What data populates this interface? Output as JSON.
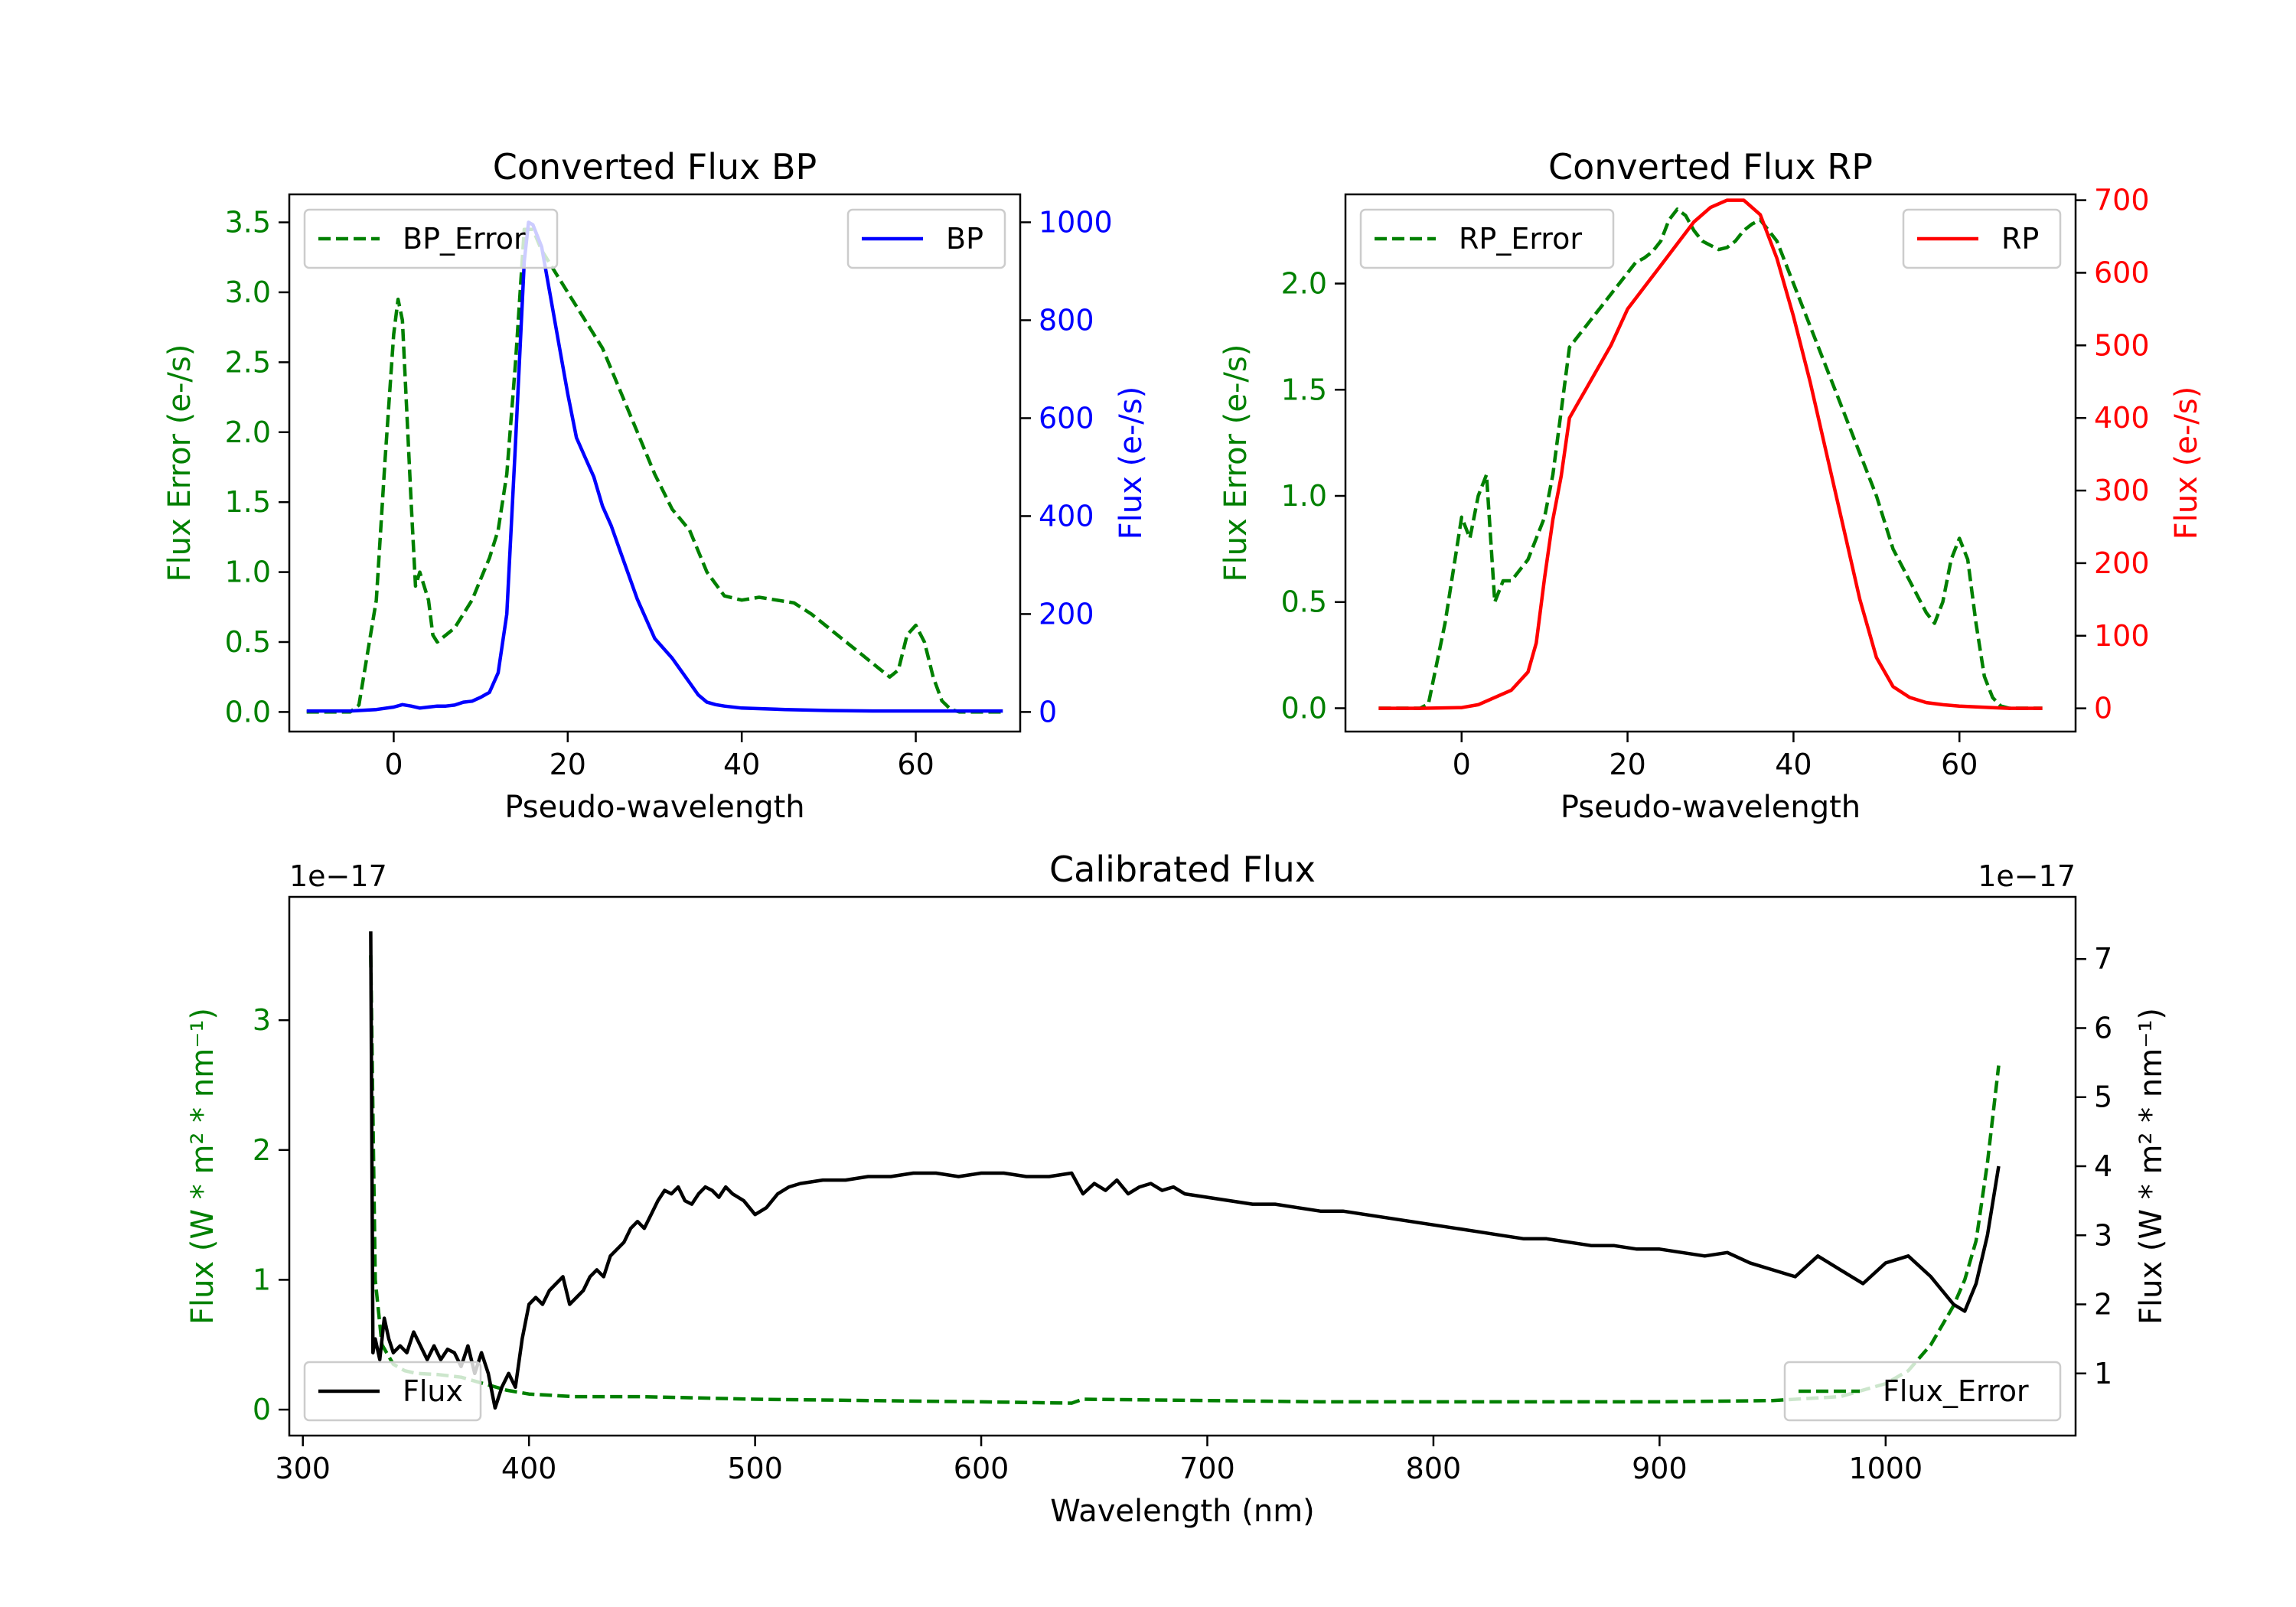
{
  "chart_data": [
    {
      "type": "line",
      "title": "Converted Flux BP",
      "xlabel": "Pseudo-wavelength",
      "ylabel_left": "Flux Error (e-/s)",
      "ylabel_right": "Flux (e-/s)",
      "xlim": [
        -12,
        72
      ],
      "ylim_left": [
        -0.14,
        3.7
      ],
      "ylim_right": [
        -40,
        1057
      ],
      "x_ticks": [
        0,
        20,
        40,
        60
      ],
      "left_ticks": [
        "0.0",
        "0.5",
        "1.0",
        "1.5",
        "2.0",
        "2.5",
        "3.0",
        "3.5"
      ],
      "right_ticks": [
        "0",
        "200",
        "400",
        "600",
        "800",
        "1000"
      ],
      "left_color": "#008000",
      "right_color": "#0000ff",
      "series": [
        {
          "name": "BP_Error",
          "axis": "left",
          "color": "#008000",
          "dash": true,
          "legend": "top-left",
          "x": [
            -10,
            -5,
            -4,
            -2,
            -1,
            0,
            0.5,
            1,
            2,
            2.5,
            3,
            4,
            4.5,
            5,
            6,
            7,
            8,
            9,
            10,
            11,
            12,
            13,
            14,
            15,
            16,
            17,
            18,
            19,
            20,
            22,
            24,
            26,
            28,
            30,
            32,
            34,
            36,
            38,
            40,
            42,
            44,
            46,
            48,
            50,
            52,
            54,
            56,
            57,
            58,
            59,
            60,
            61,
            62,
            63,
            64,
            65,
            66,
            68,
            70
          ],
          "y": [
            0,
            0,
            0.05,
            0.8,
            1.8,
            2.7,
            2.95,
            2.8,
            1.5,
            0.9,
            1.0,
            0.8,
            0.55,
            0.5,
            0.55,
            0.6,
            0.7,
            0.8,
            0.95,
            1.1,
            1.3,
            1.7,
            2.5,
            3.45,
            3.45,
            3.3,
            3.2,
            3.1,
            3.0,
            2.8,
            2.6,
            2.3,
            2.0,
            1.7,
            1.45,
            1.3,
            1.0,
            0.83,
            0.8,
            0.82,
            0.8,
            0.78,
            0.7,
            0.6,
            0.5,
            0.4,
            0.3,
            0.25,
            0.3,
            0.55,
            0.62,
            0.5,
            0.25,
            0.08,
            0.02,
            0,
            0,
            0,
            0
          ]
        },
        {
          "name": "BP",
          "axis": "right",
          "color": "#0000ff",
          "dash": false,
          "legend": "top-right",
          "x": [
            -10,
            -5,
            -2,
            0,
            1,
            2,
            3,
            4,
            5,
            6,
            7,
            8,
            9,
            10,
            11,
            12,
            13,
            14,
            15,
            15.5,
            16,
            17,
            18,
            19,
            20,
            21,
            22,
            23,
            24,
            25,
            26,
            28,
            30,
            32,
            34,
            35,
            36,
            37,
            38,
            40,
            45,
            50,
            55,
            60,
            65,
            70
          ],
          "y": [
            2,
            2,
            5,
            10,
            15,
            12,
            8,
            10,
            12,
            12,
            14,
            20,
            22,
            30,
            40,
            80,
            200,
            550,
            920,
            1000,
            995,
            950,
            850,
            750,
            650,
            560,
            520,
            480,
            420,
            380,
            330,
            230,
            150,
            110,
            60,
            35,
            20,
            15,
            12,
            8,
            5,
            3,
            2,
            2,
            2,
            2
          ]
        }
      ]
    },
    {
      "type": "line",
      "title": "Converted Flux RP",
      "xlabel": "Pseudo-wavelength",
      "ylabel_left": "Flux Error (e-/s)",
      "ylabel_right": "Flux (e-/s)",
      "xlim": [
        -14,
        74
      ],
      "ylim_left": [
        -0.11,
        2.42
      ],
      "ylim_right": [
        -32,
        708
      ],
      "x_ticks": [
        0,
        20,
        40,
        60
      ],
      "left_ticks": [
        "0.0",
        "0.5",
        "1.0",
        "1.5",
        "2.0"
      ],
      "right_ticks": [
        "0",
        "100",
        "200",
        "300",
        "400",
        "500",
        "600",
        "700"
      ],
      "left_color": "#008000",
      "right_color": "#ff0000",
      "series": [
        {
          "name": "RP_Error",
          "axis": "left",
          "color": "#008000",
          "dash": true,
          "legend": "top-left",
          "x": [
            -10,
            -5,
            -4,
            -2,
            0,
            1,
            2,
            3,
            4,
            5,
            6,
            8,
            10,
            11,
            12,
            13,
            14,
            15,
            16,
            17,
            18,
            19,
            20,
            21,
            22,
            23,
            24,
            25,
            26,
            27,
            28,
            29,
            30,
            31,
            32,
            33,
            34,
            35,
            36,
            38,
            40,
            42,
            44,
            46,
            48,
            50,
            52,
            54,
            56,
            57,
            58,
            59,
            60,
            61,
            62,
            63,
            64,
            65,
            66,
            68,
            70
          ],
          "y": [
            0,
            0,
            0.02,
            0.4,
            0.9,
            0.8,
            1.0,
            1.1,
            0.5,
            0.6,
            0.6,
            0.7,
            0.9,
            1.1,
            1.4,
            1.7,
            1.75,
            1.8,
            1.85,
            1.9,
            1.95,
            2.0,
            2.05,
            2.1,
            2.12,
            2.15,
            2.2,
            2.3,
            2.35,
            2.32,
            2.25,
            2.2,
            2.18,
            2.16,
            2.17,
            2.2,
            2.25,
            2.28,
            2.3,
            2.2,
            2.0,
            1.8,
            1.6,
            1.4,
            1.2,
            1.0,
            0.75,
            0.6,
            0.45,
            0.4,
            0.5,
            0.7,
            0.8,
            0.7,
            0.4,
            0.15,
            0.05,
            0.01,
            0,
            0,
            0
          ]
        },
        {
          "name": "RP",
          "axis": "right",
          "color": "#ff0000",
          "dash": false,
          "legend": "top-right",
          "x": [
            -10,
            -5,
            0,
            2,
            4,
            6,
            8,
            9,
            10,
            11,
            12,
            13,
            14,
            15,
            16,
            18,
            20,
            22,
            24,
            26,
            28,
            30,
            32,
            34,
            36,
            38,
            40,
            42,
            44,
            46,
            48,
            50,
            52,
            54,
            56,
            58,
            60,
            62,
            64,
            66,
            68,
            70
          ],
          "y": [
            0,
            0,
            1,
            5,
            15,
            25,
            50,
            90,
            180,
            260,
            320,
            400,
            420,
            440,
            460,
            500,
            550,
            580,
            610,
            640,
            670,
            690,
            700,
            700,
            680,
            620,
            540,
            450,
            350,
            250,
            150,
            70,
            30,
            15,
            8,
            5,
            3,
            2,
            1,
            0,
            0,
            0
          ]
        }
      ]
    },
    {
      "type": "line",
      "title": "Calibrated Flux",
      "xlabel": "Wavelength (nm)",
      "ylabel_left": "Flux (W * m² * nm⁻¹)",
      "ylabel_right": "Flux (W * m² * nm⁻¹)",
      "offset_left": "1e−17",
      "offset_right": "1e−17",
      "xlim": [
        294,
        1084
      ],
      "ylim_left": [
        -0.2,
        3.95
      ],
      "ylim_right": [
        0.1,
        7.9
      ],
      "x_ticks": [
        300,
        400,
        500,
        600,
        700,
        800,
        900,
        1000
      ],
      "left_ticks": [
        "0",
        "1",
        "2",
        "3"
      ],
      "right_ticks": [
        "1",
        "2",
        "3",
        "4",
        "5",
        "6",
        "7"
      ],
      "left_color": "#008000",
      "right_color": "#000000",
      "series": [
        {
          "name": "Flux_Error",
          "axis": "left",
          "color": "#008000",
          "dash": true,
          "legend": "bottom-right",
          "x": [
            330,
            332,
            335,
            340,
            345,
            350,
            360,
            370,
            380,
            390,
            400,
            420,
            450,
            500,
            550,
            600,
            640,
            645,
            700,
            750,
            800,
            850,
            900,
            950,
            980,
            1000,
            1010,
            1020,
            1030,
            1035,
            1040,
            1045,
            1050
          ],
          "y": [
            3.5,
            1.0,
            0.5,
            0.35,
            0.3,
            0.28,
            0.27,
            0.25,
            0.2,
            0.15,
            0.12,
            0.1,
            0.1,
            0.08,
            0.07,
            0.06,
            0.05,
            0.08,
            0.07,
            0.06,
            0.06,
            0.06,
            0.06,
            0.07,
            0.1,
            0.2,
            0.3,
            0.5,
            0.8,
            1.0,
            1.3,
            1.9,
            2.65
          ]
        },
        {
          "name": "Flux",
          "axis": "right",
          "color": "#000000",
          "dash": false,
          "legend": "bottom-left",
          "x": [
            330,
            331,
            332,
            334,
            336,
            338,
            340,
            343,
            346,
            349,
            352,
            355,
            358,
            361,
            364,
            367,
            370,
            373,
            376,
            379,
            382,
            385,
            388,
            391,
            394,
            397,
            400,
            403,
            406,
            409,
            412,
            415,
            418,
            421,
            424,
            427,
            430,
            433,
            436,
            439,
            442,
            445,
            448,
            451,
            454,
            457,
            460,
            463,
            466,
            469,
            472,
            475,
            478,
            481,
            484,
            487,
            490,
            495,
            500,
            505,
            510,
            515,
            520,
            530,
            540,
            550,
            560,
            570,
            580,
            590,
            600,
            610,
            620,
            630,
            640,
            645,
            650,
            655,
            660,
            665,
            670,
            675,
            680,
            685,
            690,
            700,
            710,
            720,
            730,
            740,
            750,
            760,
            770,
            780,
            790,
            800,
            810,
            820,
            830,
            840,
            850,
            860,
            870,
            880,
            890,
            900,
            910,
            920,
            930,
            940,
            950,
            960,
            970,
            980,
            990,
            1000,
            1010,
            1020,
            1025,
            1030,
            1035,
            1040,
            1045,
            1050
          ],
          "y": [
            7.4,
            1.3,
            1.5,
            1.2,
            1.8,
            1.5,
            1.3,
            1.4,
            1.3,
            1.6,
            1.4,
            1.2,
            1.4,
            1.2,
            1.35,
            1.3,
            1.1,
            1.4,
            1.0,
            1.3,
            1.0,
            0.5,
            0.8,
            1.0,
            0.8,
            1.5,
            2.0,
            2.1,
            2.0,
            2.2,
            2.3,
            2.4,
            2.0,
            2.1,
            2.2,
            2.4,
            2.5,
            2.4,
            2.7,
            2.8,
            2.9,
            3.1,
            3.2,
            3.1,
            3.3,
            3.5,
            3.65,
            3.6,
            3.7,
            3.5,
            3.45,
            3.6,
            3.7,
            3.65,
            3.55,
            3.7,
            3.6,
            3.5,
            3.3,
            3.4,
            3.6,
            3.7,
            3.75,
            3.8,
            3.8,
            3.85,
            3.85,
            3.9,
            3.9,
            3.85,
            3.9,
            3.9,
            3.85,
            3.85,
            3.9,
            3.6,
            3.75,
            3.65,
            3.8,
            3.6,
            3.7,
            3.75,
            3.65,
            3.7,
            3.6,
            3.55,
            3.5,
            3.45,
            3.45,
            3.4,
            3.35,
            3.35,
            3.3,
            3.25,
            3.2,
            3.15,
            3.1,
            3.05,
            3.0,
            2.95,
            2.95,
            2.9,
            2.85,
            2.85,
            2.8,
            2.8,
            2.75,
            2.7,
            2.75,
            2.6,
            2.5,
            2.4,
            2.7,
            2.5,
            2.3,
            2.6,
            2.7,
            2.4,
            2.2,
            2.0,
            1.9,
            2.3,
            3.0,
            4.0
          ]
        }
      ]
    }
  ]
}
